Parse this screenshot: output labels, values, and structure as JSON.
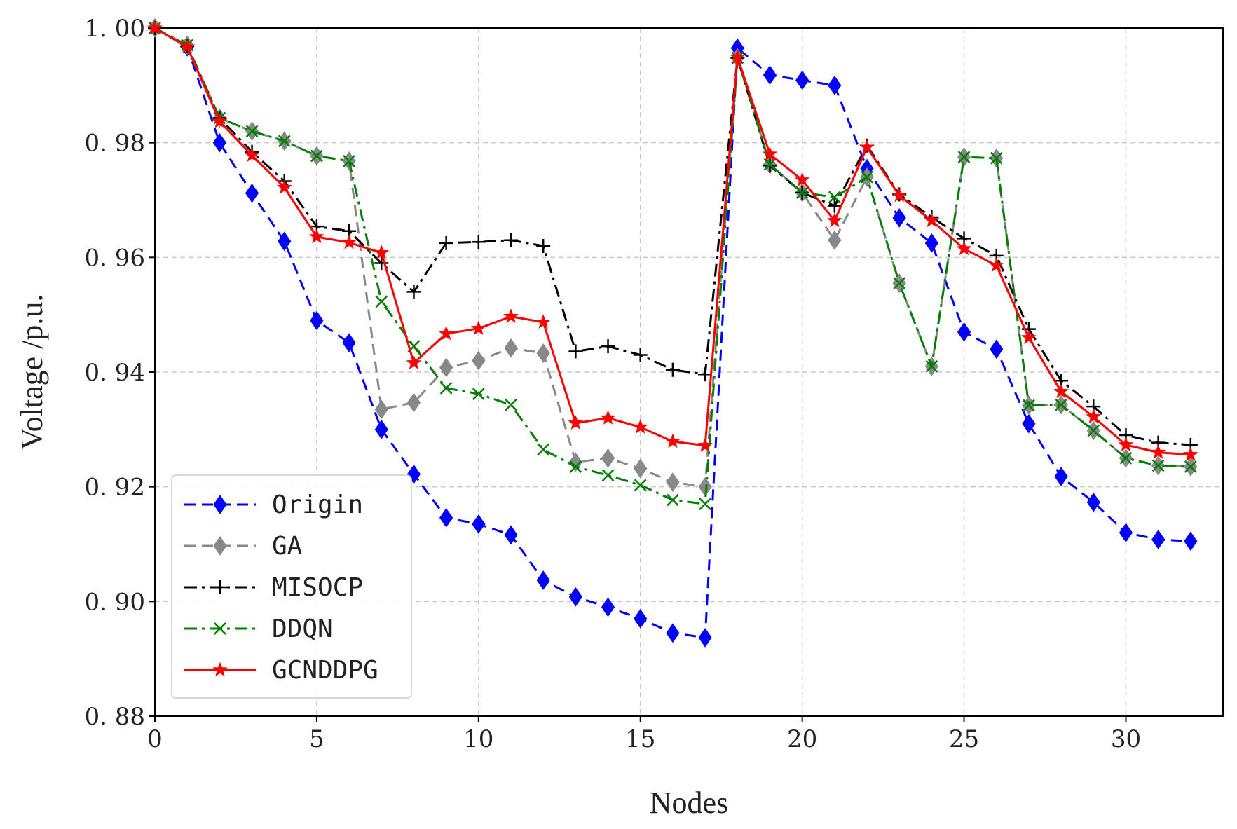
{
  "chart_data": {
    "type": "line",
    "title": "",
    "xlabel": "Nodes",
    "ylabel": "Voltage /p.u.",
    "xlim": [
      0,
      33
    ],
    "ylim": [
      0.88,
      1.0
    ],
    "xticks": [
      0,
      5,
      10,
      15,
      20,
      25,
      30
    ],
    "xtick_labels": [
      "0",
      "5",
      "10",
      "15",
      "20",
      "25",
      "30"
    ],
    "yticks": [
      0.88,
      0.9,
      0.92,
      0.94,
      0.96,
      0.98,
      1.0
    ],
    "ytick_labels": [
      "0. 88",
      "0. 90",
      "0. 92",
      "0. 94",
      "0. 96",
      "0. 98",
      "1. 00"
    ],
    "grid": true,
    "legend_position": "lower-left",
    "x": [
      0,
      1,
      2,
      3,
      4,
      5,
      6,
      7,
      8,
      9,
      10,
      11,
      12,
      13,
      14,
      15,
      16,
      17,
      18,
      19,
      20,
      21,
      22,
      23,
      24,
      25,
      26,
      27,
      28,
      29,
      30,
      31,
      32
    ],
    "series": [
      {
        "name": "Origin",
        "color": "#0000ff",
        "dash": "dashed",
        "marker": "diamond",
        "values": [
          1.0,
          0.9967,
          0.98,
          0.9712,
          0.9628,
          0.949,
          0.9451,
          0.93,
          0.9222,
          0.9146,
          0.9135,
          0.9116,
          0.9037,
          0.9008,
          0.899,
          0.897,
          0.8945,
          0.8937,
          0.9965,
          0.9918,
          0.9909,
          0.99,
          0.9755,
          0.9669,
          0.9625,
          0.947,
          0.944,
          0.931,
          0.9218,
          0.9173,
          0.912,
          0.9108,
          0.9105
        ]
      },
      {
        "name": "GA",
        "color": "#888888",
        "dash": "dashed",
        "marker": "diamond",
        "values": [
          1.0,
          0.997,
          0.9843,
          0.982,
          0.9803,
          0.9777,
          0.9768,
          0.9335,
          0.9347,
          0.9408,
          0.942,
          0.9442,
          0.9433,
          0.9243,
          0.925,
          0.9232,
          0.9208,
          0.92,
          0.9948,
          0.9762,
          0.9713,
          0.963,
          0.974,
          0.9555,
          0.941,
          0.9775,
          0.9773,
          0.9342,
          0.9343,
          0.9298,
          0.925,
          0.9237,
          0.9235
        ]
      },
      {
        "name": "MISOCP",
        "color": "#000000",
        "dash": "dashdot",
        "marker": "plus",
        "values": [
          1.0,
          0.9968,
          0.9843,
          0.9784,
          0.9733,
          0.9654,
          0.9646,
          0.959,
          0.954,
          0.9625,
          0.9627,
          0.963,
          0.962,
          0.9436,
          0.9445,
          0.943,
          0.9404,
          0.9396,
          0.9948,
          0.976,
          0.9713,
          0.969,
          0.9795,
          0.971,
          0.967,
          0.9633,
          0.9603,
          0.9475,
          0.9385,
          0.934,
          0.929,
          0.9277,
          0.9273
        ]
      },
      {
        "name": "DDQN",
        "color": "#008000",
        "dash": "dashdot",
        "marker": "x",
        "values": [
          1.0,
          0.997,
          0.9843,
          0.982,
          0.9803,
          0.9777,
          0.9768,
          0.9523,
          0.9445,
          0.9372,
          0.9362,
          0.9343,
          0.9265,
          0.9235,
          0.922,
          0.9203,
          0.9177,
          0.917,
          0.9948,
          0.9762,
          0.9713,
          0.9705,
          0.974,
          0.9555,
          0.941,
          0.9775,
          0.9773,
          0.9342,
          0.9343,
          0.9298,
          0.925,
          0.9237,
          0.9235
        ]
      },
      {
        "name": "GCNDDPG",
        "color": "#ff0000",
        "dash": "solid",
        "marker": "star",
        "values": [
          1.0,
          0.9967,
          0.9837,
          0.9778,
          0.9722,
          0.9636,
          0.9626,
          0.9608,
          0.9416,
          0.9467,
          0.9476,
          0.9497,
          0.9487,
          0.9311,
          0.932,
          0.9304,
          0.9279,
          0.9272,
          0.9949,
          0.978,
          0.9735,
          0.9664,
          0.9792,
          0.9708,
          0.9664,
          0.9615,
          0.9586,
          0.946,
          0.9366,
          0.9322,
          0.9273,
          0.926,
          0.9256
        ]
      }
    ]
  }
}
